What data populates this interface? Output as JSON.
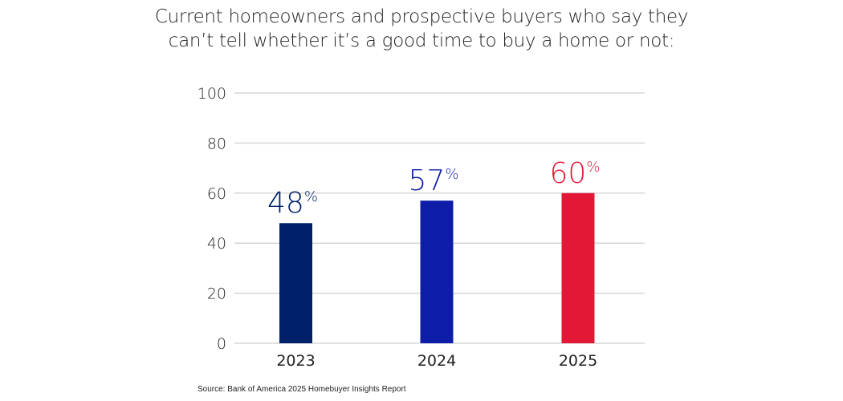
{
  "chart_data": {
    "type": "bar",
    "title_lines": [
      "Current homeowners and prospective buyers who say they",
      "can’t tell whether it’s a good time to buy a home or not:"
    ],
    "categories": [
      "2023",
      "2024",
      "2025"
    ],
    "values": [
      48,
      57,
      60
    ],
    "value_labels": [
      "48",
      "57",
      "60"
    ],
    "value_suffix": "%",
    "colors": [
      "#002169",
      "#0E1DA8",
      "#E31837"
    ],
    "xlabel": "",
    "ylabel": "",
    "ylim": [
      0,
      100
    ],
    "yticks": [
      0,
      20,
      40,
      60,
      80,
      100
    ],
    "grid": true,
    "grid_color": "#d9d5d5",
    "legend": "none"
  },
  "source": "Source: Bank of America 2025 Homebuyer Insights Report"
}
